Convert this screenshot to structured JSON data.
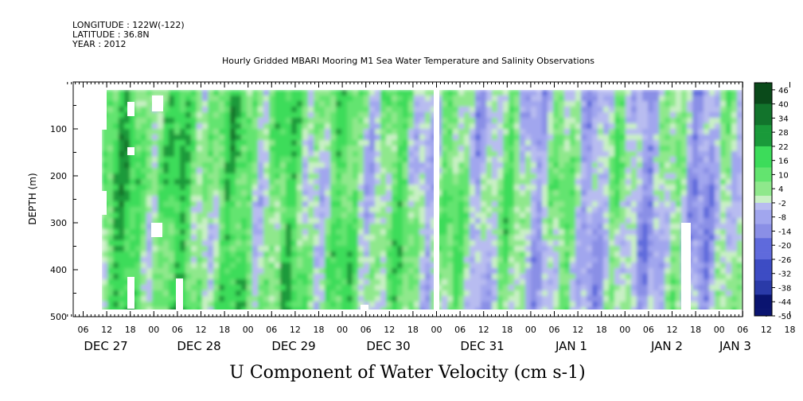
{
  "header": {
    "longitude": "LONGITUDE : 122W(-122)",
    "latitude": "LATITUDE : 36.8N",
    "year": "YEAR : 2012"
  },
  "chart_data": {
    "type": "heatmap",
    "title": "Hourly Gridded MBARI Mooring M1 Sea Water Temperature and Salinity Observations",
    "xlabel": "U Component of Water Velocity (cm s-1)",
    "ylabel": "DEPTH (m)",
    "y_ticks": [
      100,
      200,
      300,
      400,
      500
    ],
    "ylim": [
      0,
      500
    ],
    "y_reversed": true,
    "x_hour_ticks": [
      "06",
      "12",
      "18",
      "00",
      "06",
      "12",
      "18",
      "00",
      "06",
      "12",
      "18",
      "00",
      "06",
      "12",
      "18",
      "00",
      "06",
      "12",
      "18",
      "00",
      "06",
      "12",
      "18",
      "00",
      "06",
      "12",
      "18",
      "00",
      "06",
      "12",
      "18",
      "00"
    ],
    "date_labels": [
      "DEC 27",
      "DEC 28",
      "DEC 29",
      "DEC 30",
      "DEC 31",
      "JAN  1",
      "JAN  2",
      "JAN  3"
    ],
    "colorbar": {
      "labels": [
        "46",
        "40",
        "34",
        "28",
        "22",
        "16",
        "10",
        "4",
        "-2",
        "-8",
        "-14",
        "-20",
        "-26",
        "-32",
        "-38",
        "-44",
        "-50"
      ],
      "min": -50,
      "max": 49,
      "step": 3
    },
    "colors": {
      "strong_positive": "#1a8f3a",
      "positive": "#3cdc5a",
      "weak_positive": "#8fe88c",
      "near_zero": "#c9f0c5",
      "weak_negative": "#b8bcf0",
      "negative": "#8a8fe6",
      "strong_negative": "#2a3aa8",
      "gap": "#ffffff"
    }
  }
}
